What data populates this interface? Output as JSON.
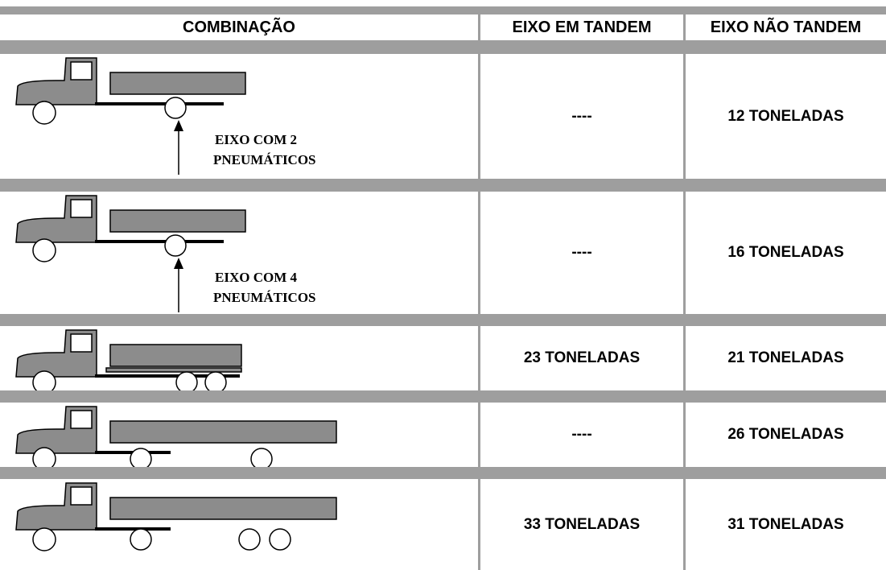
{
  "table": {
    "header": [
      "COMBINAÇÃO",
      "EIXO EM TANDEM",
      "EIXO NÃO TANDEM"
    ],
    "rows": [
      {
        "note": [
          "EIXO COM 2",
          "PNEUMÁTICOS"
        ],
        "tandem": "----",
        "nao_tandem": "12 TONELADAS"
      },
      {
        "note": [
          "EIXO COM 4",
          "PNEUMÁTICOS"
        ],
        "tandem": "----",
        "nao_tandem": "16 TONELADAS"
      },
      {
        "tandem": "23 TONELADAS",
        "nao_tandem": "21 TONELADAS"
      },
      {
        "tandem": "----",
        "nao_tandem": "26 TONELADAS"
      },
      {
        "tandem": "33 TONELADAS",
        "nao_tandem": "31 TONELADAS"
      }
    ]
  }
}
